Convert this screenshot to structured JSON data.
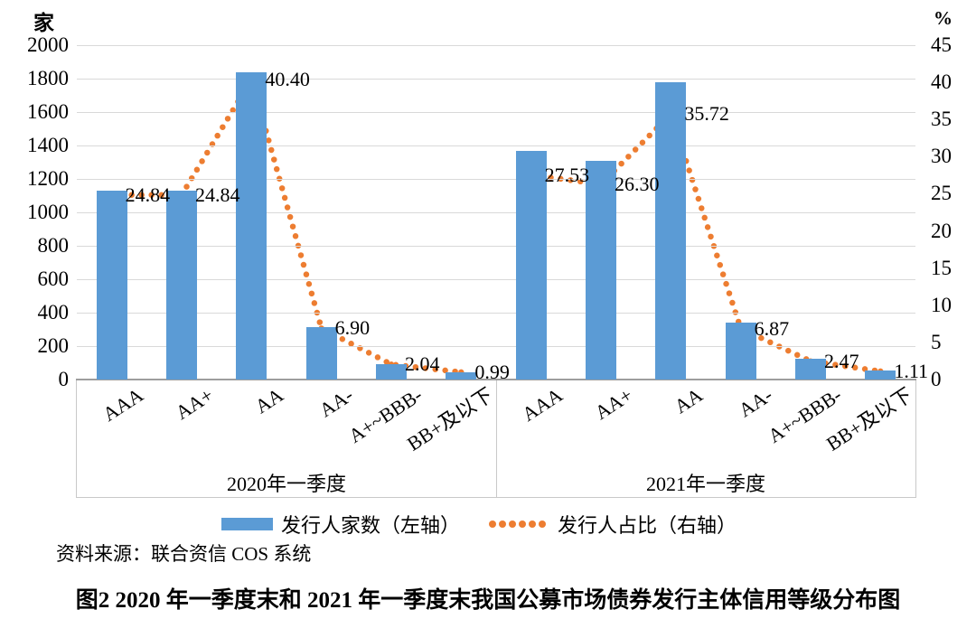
{
  "chart_data": {
    "type": "bar",
    "subtype": "grouped bars with dotted line overlay (dual axis)",
    "groups": [
      "2020年一季度",
      "2021年一季度"
    ],
    "categories": [
      "AAA",
      "AA+",
      "AA",
      "AA-",
      "A+~BBB-",
      "BB+及以下"
    ],
    "left_axis": {
      "unit": "家",
      "min": 0,
      "max": 2000,
      "step": 200
    },
    "right_axis": {
      "unit": "%",
      "min": 0,
      "max": 45,
      "step": 5
    },
    "grid": true,
    "legend_position": "bottom",
    "series": [
      {
        "name": "发行人家数（左轴）",
        "type": "bar",
        "axis": "left",
        "color": "#5B9BD5",
        "values_by_group": [
          [
            1130,
            1130,
            1838,
            314,
            93,
            45
          ],
          [
            1370,
            1309,
            1777,
            342,
            123,
            55
          ]
        ]
      },
      {
        "name": "发行人占比（右轴）",
        "type": "dotted-line",
        "axis": "right",
        "color": "#ED7D31",
        "values_by_group": [
          [
            24.84,
            24.84,
            40.4,
            6.9,
            2.04,
            0.99
          ],
          [
            27.53,
            26.3,
            35.72,
            6.87,
            2.47,
            1.11
          ]
        ],
        "data_labels_by_group": [
          [
            "24.84",
            "24.84",
            "40.40",
            "6.90",
            "2.04",
            "0.99"
          ],
          [
            "27.53",
            "26.30",
            "35.72",
            "6.87",
            "2.47",
            "1.11"
          ]
        ]
      }
    ],
    "grid_color": "#D9D9D9"
  },
  "source_note": "资料来源：联合资信 COS 系统",
  "caption": "图2  2020 年一季度末和 2021 年一季度末我国公募市场债券发行主体信用等级分布图"
}
